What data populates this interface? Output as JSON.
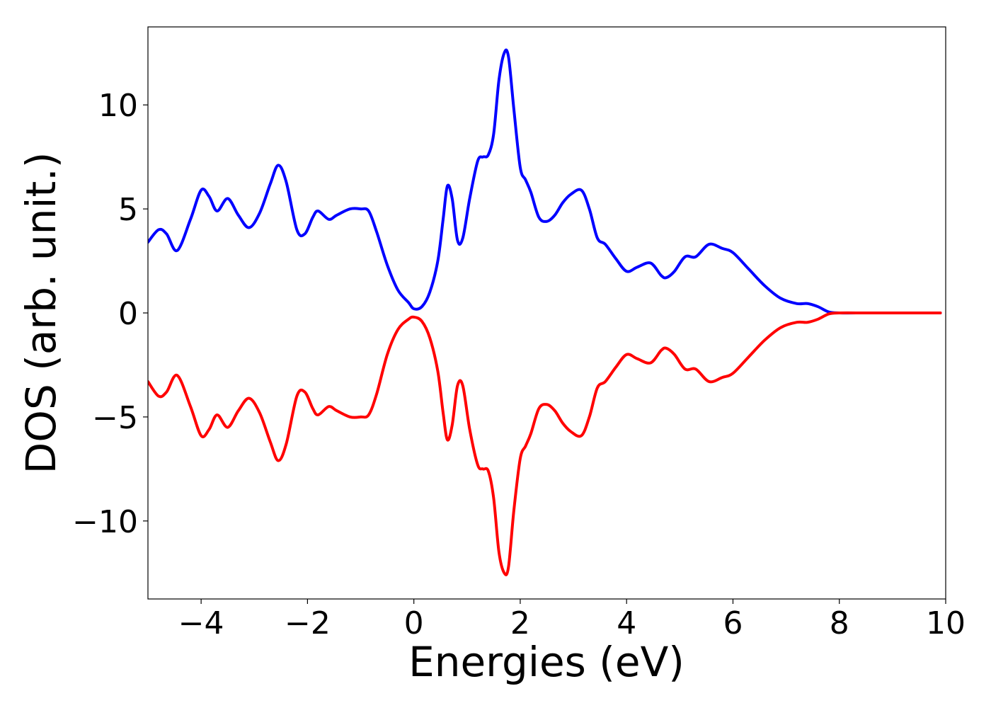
{
  "chart_data": {
    "type": "line",
    "title": "",
    "xlabel": "Energies (eV)",
    "ylabel": "DOS (arb. unit.)",
    "xlim": [
      -5,
      10
    ],
    "ylim": [
      -13.75,
      13.75
    ],
    "xticks": [
      -4,
      -2,
      0,
      2,
      4,
      6,
      8,
      10
    ],
    "xtick_labels": [
      "−4",
      "−2",
      "0",
      "2",
      "4",
      "6",
      "8",
      "10"
    ],
    "yticks": [
      -10,
      -5,
      0,
      5,
      10
    ],
    "ytick_labels": [
      "−10",
      "−5",
      "0",
      "5",
      "10"
    ],
    "grid": false,
    "legend": "none",
    "series": [
      {
        "color": "#0000ff",
        "x": [
          -5.0,
          -4.8,
          -4.65,
          -4.45,
          -4.2,
          -4.0,
          -3.85,
          -3.7,
          -3.5,
          -3.3,
          -3.1,
          -2.9,
          -2.7,
          -2.55,
          -2.4,
          -2.2,
          -2.05,
          -1.9,
          -1.8,
          -1.6,
          -1.45,
          -1.2,
          -1.0,
          -0.85,
          -0.7,
          -0.5,
          -0.3,
          -0.1,
          0.0,
          0.15,
          0.3,
          0.45,
          0.55,
          0.63,
          0.72,
          0.82,
          0.92,
          1.05,
          1.2,
          1.3,
          1.4,
          1.5,
          1.6,
          1.7,
          1.78,
          1.88,
          2.0,
          2.1,
          2.2,
          2.35,
          2.5,
          2.65,
          2.8,
          2.95,
          3.15,
          3.3,
          3.45,
          3.6,
          3.8,
          4.0,
          4.2,
          4.45,
          4.65,
          4.75,
          4.9,
          5.1,
          5.3,
          5.55,
          5.8,
          6.0,
          6.3,
          6.6,
          6.9,
          7.2,
          7.4,
          7.6,
          7.8,
          8.0,
          8.5,
          9.0,
          9.5,
          9.9
        ],
        "y": [
          3.4,
          4.0,
          3.8,
          3.0,
          4.5,
          5.9,
          5.6,
          4.9,
          5.5,
          4.7,
          4.1,
          4.8,
          6.2,
          7.1,
          6.3,
          4.0,
          3.8,
          4.6,
          4.9,
          4.5,
          4.7,
          5.0,
          5.0,
          4.9,
          3.9,
          2.3,
          1.1,
          0.5,
          0.2,
          0.3,
          1.0,
          2.5,
          4.5,
          6.1,
          5.5,
          3.5,
          3.6,
          5.5,
          7.3,
          7.5,
          7.6,
          8.6,
          11.2,
          12.5,
          12.3,
          9.8,
          7.0,
          6.4,
          5.8,
          4.6,
          4.4,
          4.7,
          5.3,
          5.7,
          5.9,
          5.0,
          3.6,
          3.3,
          2.6,
          2.0,
          2.2,
          2.4,
          1.8,
          1.7,
          2.0,
          2.7,
          2.7,
          3.3,
          3.1,
          2.9,
          2.1,
          1.3,
          0.7,
          0.45,
          0.45,
          0.3,
          0.05,
          0.0,
          0.0,
          0.0,
          0.0,
          0.0
        ]
      },
      {
        "color": "#ff0000",
        "x": [
          -5.0,
          -4.8,
          -4.65,
          -4.45,
          -4.2,
          -4.0,
          -3.85,
          -3.7,
          -3.5,
          -3.3,
          -3.1,
          -2.9,
          -2.7,
          -2.55,
          -2.4,
          -2.2,
          -2.05,
          -1.9,
          -1.8,
          -1.6,
          -1.45,
          -1.2,
          -1.0,
          -0.85,
          -0.7,
          -0.5,
          -0.3,
          -0.1,
          0.0,
          0.15,
          0.3,
          0.45,
          0.55,
          0.63,
          0.72,
          0.82,
          0.92,
          1.05,
          1.2,
          1.3,
          1.4,
          1.5,
          1.6,
          1.7,
          1.78,
          1.88,
          2.0,
          2.1,
          2.2,
          2.35,
          2.5,
          2.65,
          2.8,
          2.95,
          3.15,
          3.3,
          3.45,
          3.6,
          3.8,
          4.0,
          4.2,
          4.45,
          4.65,
          4.75,
          4.9,
          5.1,
          5.3,
          5.55,
          5.8,
          6.0,
          6.3,
          6.6,
          6.9,
          7.2,
          7.4,
          7.6,
          7.8,
          8.0,
          8.5,
          9.0,
          9.5,
          9.9
        ],
        "y": [
          -3.3,
          -4.0,
          -3.8,
          -3.0,
          -4.5,
          -5.9,
          -5.6,
          -4.9,
          -5.5,
          -4.7,
          -4.1,
          -4.8,
          -6.2,
          -7.1,
          -6.3,
          -4.0,
          -3.8,
          -4.6,
          -4.9,
          -4.5,
          -4.7,
          -5.0,
          -5.0,
          -4.9,
          -3.9,
          -2.0,
          -0.8,
          -0.3,
          -0.2,
          -0.4,
          -1.2,
          -2.8,
          -4.8,
          -6.1,
          -5.4,
          -3.5,
          -3.5,
          -5.6,
          -7.3,
          -7.5,
          -7.6,
          -8.9,
          -11.5,
          -12.5,
          -12.2,
          -9.5,
          -7.0,
          -6.4,
          -5.8,
          -4.6,
          -4.4,
          -4.7,
          -5.3,
          -5.7,
          -5.9,
          -5.0,
          -3.6,
          -3.3,
          -2.6,
          -2.0,
          -2.2,
          -2.4,
          -1.8,
          -1.7,
          -2.0,
          -2.7,
          -2.7,
          -3.3,
          -3.1,
          -2.9,
          -2.1,
          -1.3,
          -0.7,
          -0.45,
          -0.45,
          -0.3,
          -0.05,
          0.0,
          0.0,
          0.0,
          0.0,
          0.0
        ]
      }
    ]
  }
}
